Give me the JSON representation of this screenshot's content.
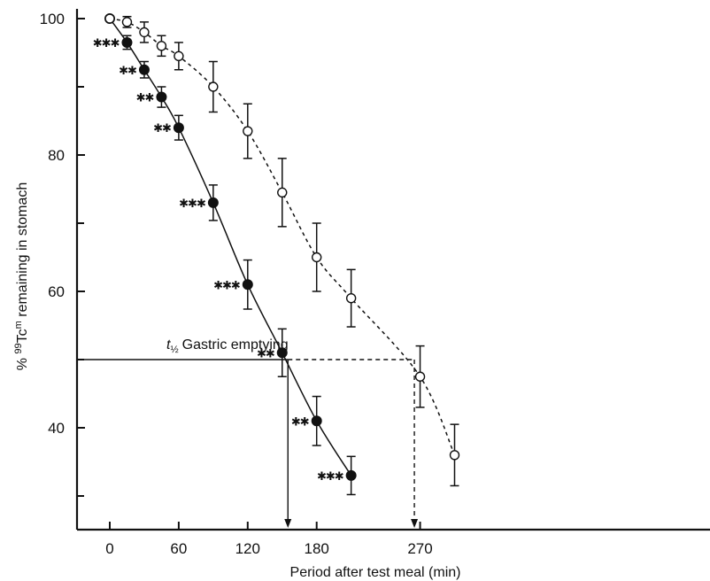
{
  "chart_data": {
    "type": "scatter",
    "xlabel": "Period after test meal (min)",
    "ylabel": "% 99Tcm remaining in stomach",
    "ylabel_parts": {
      "prefix": "% ",
      "sup": "99",
      "mid": "Tc",
      "sup2": "m",
      "suffix": " remaining in stomach"
    },
    "xlim": [
      -15,
      302
    ],
    "ylim": [
      25,
      100
    ],
    "x_ticks": [
      0,
      60,
      120,
      180,
      270
    ],
    "y_ticks": [
      40,
      60,
      80,
      100
    ],
    "y_minor_ticks": [
      30,
      50,
      70,
      90
    ],
    "grid": false,
    "annotation": {
      "text_prefix": "t",
      "text_sub": "½",
      "text_rest": "Gastric emptying",
      "y": 50,
      "series_a_x": 155,
      "series_b_x": 265
    },
    "series": [
      {
        "marker": "filled-circle",
        "line": "solid",
        "x": [
          0,
          15,
          30,
          45,
          60,
          90,
          120,
          150,
          180,
          210
        ],
        "y": [
          100,
          96.5,
          92.5,
          88.5,
          84,
          73,
          61,
          51,
          41,
          33
        ],
        "err": [
          0,
          1,
          1.2,
          1.5,
          1.8,
          2.6,
          3.6,
          3.5,
          3.6,
          2.8
        ],
        "significance": [
          "",
          "***",
          "**",
          "**",
          "**",
          "***",
          "***",
          "**",
          "**",
          "***"
        ]
      },
      {
        "marker": "open-circle",
        "line": "dashed",
        "x": [
          0,
          15,
          30,
          45,
          60,
          90,
          120,
          150,
          180,
          210,
          270,
          300
        ],
        "y": [
          100,
          99.5,
          98,
          96,
          94.5,
          90,
          83.5,
          74.5,
          65,
          59,
          47.5,
          36
        ],
        "err": [
          0,
          0.8,
          1.5,
          1.5,
          2,
          3.7,
          4,
          5,
          5,
          4.2,
          4.5,
          4.5
        ],
        "significance": []
      }
    ]
  }
}
